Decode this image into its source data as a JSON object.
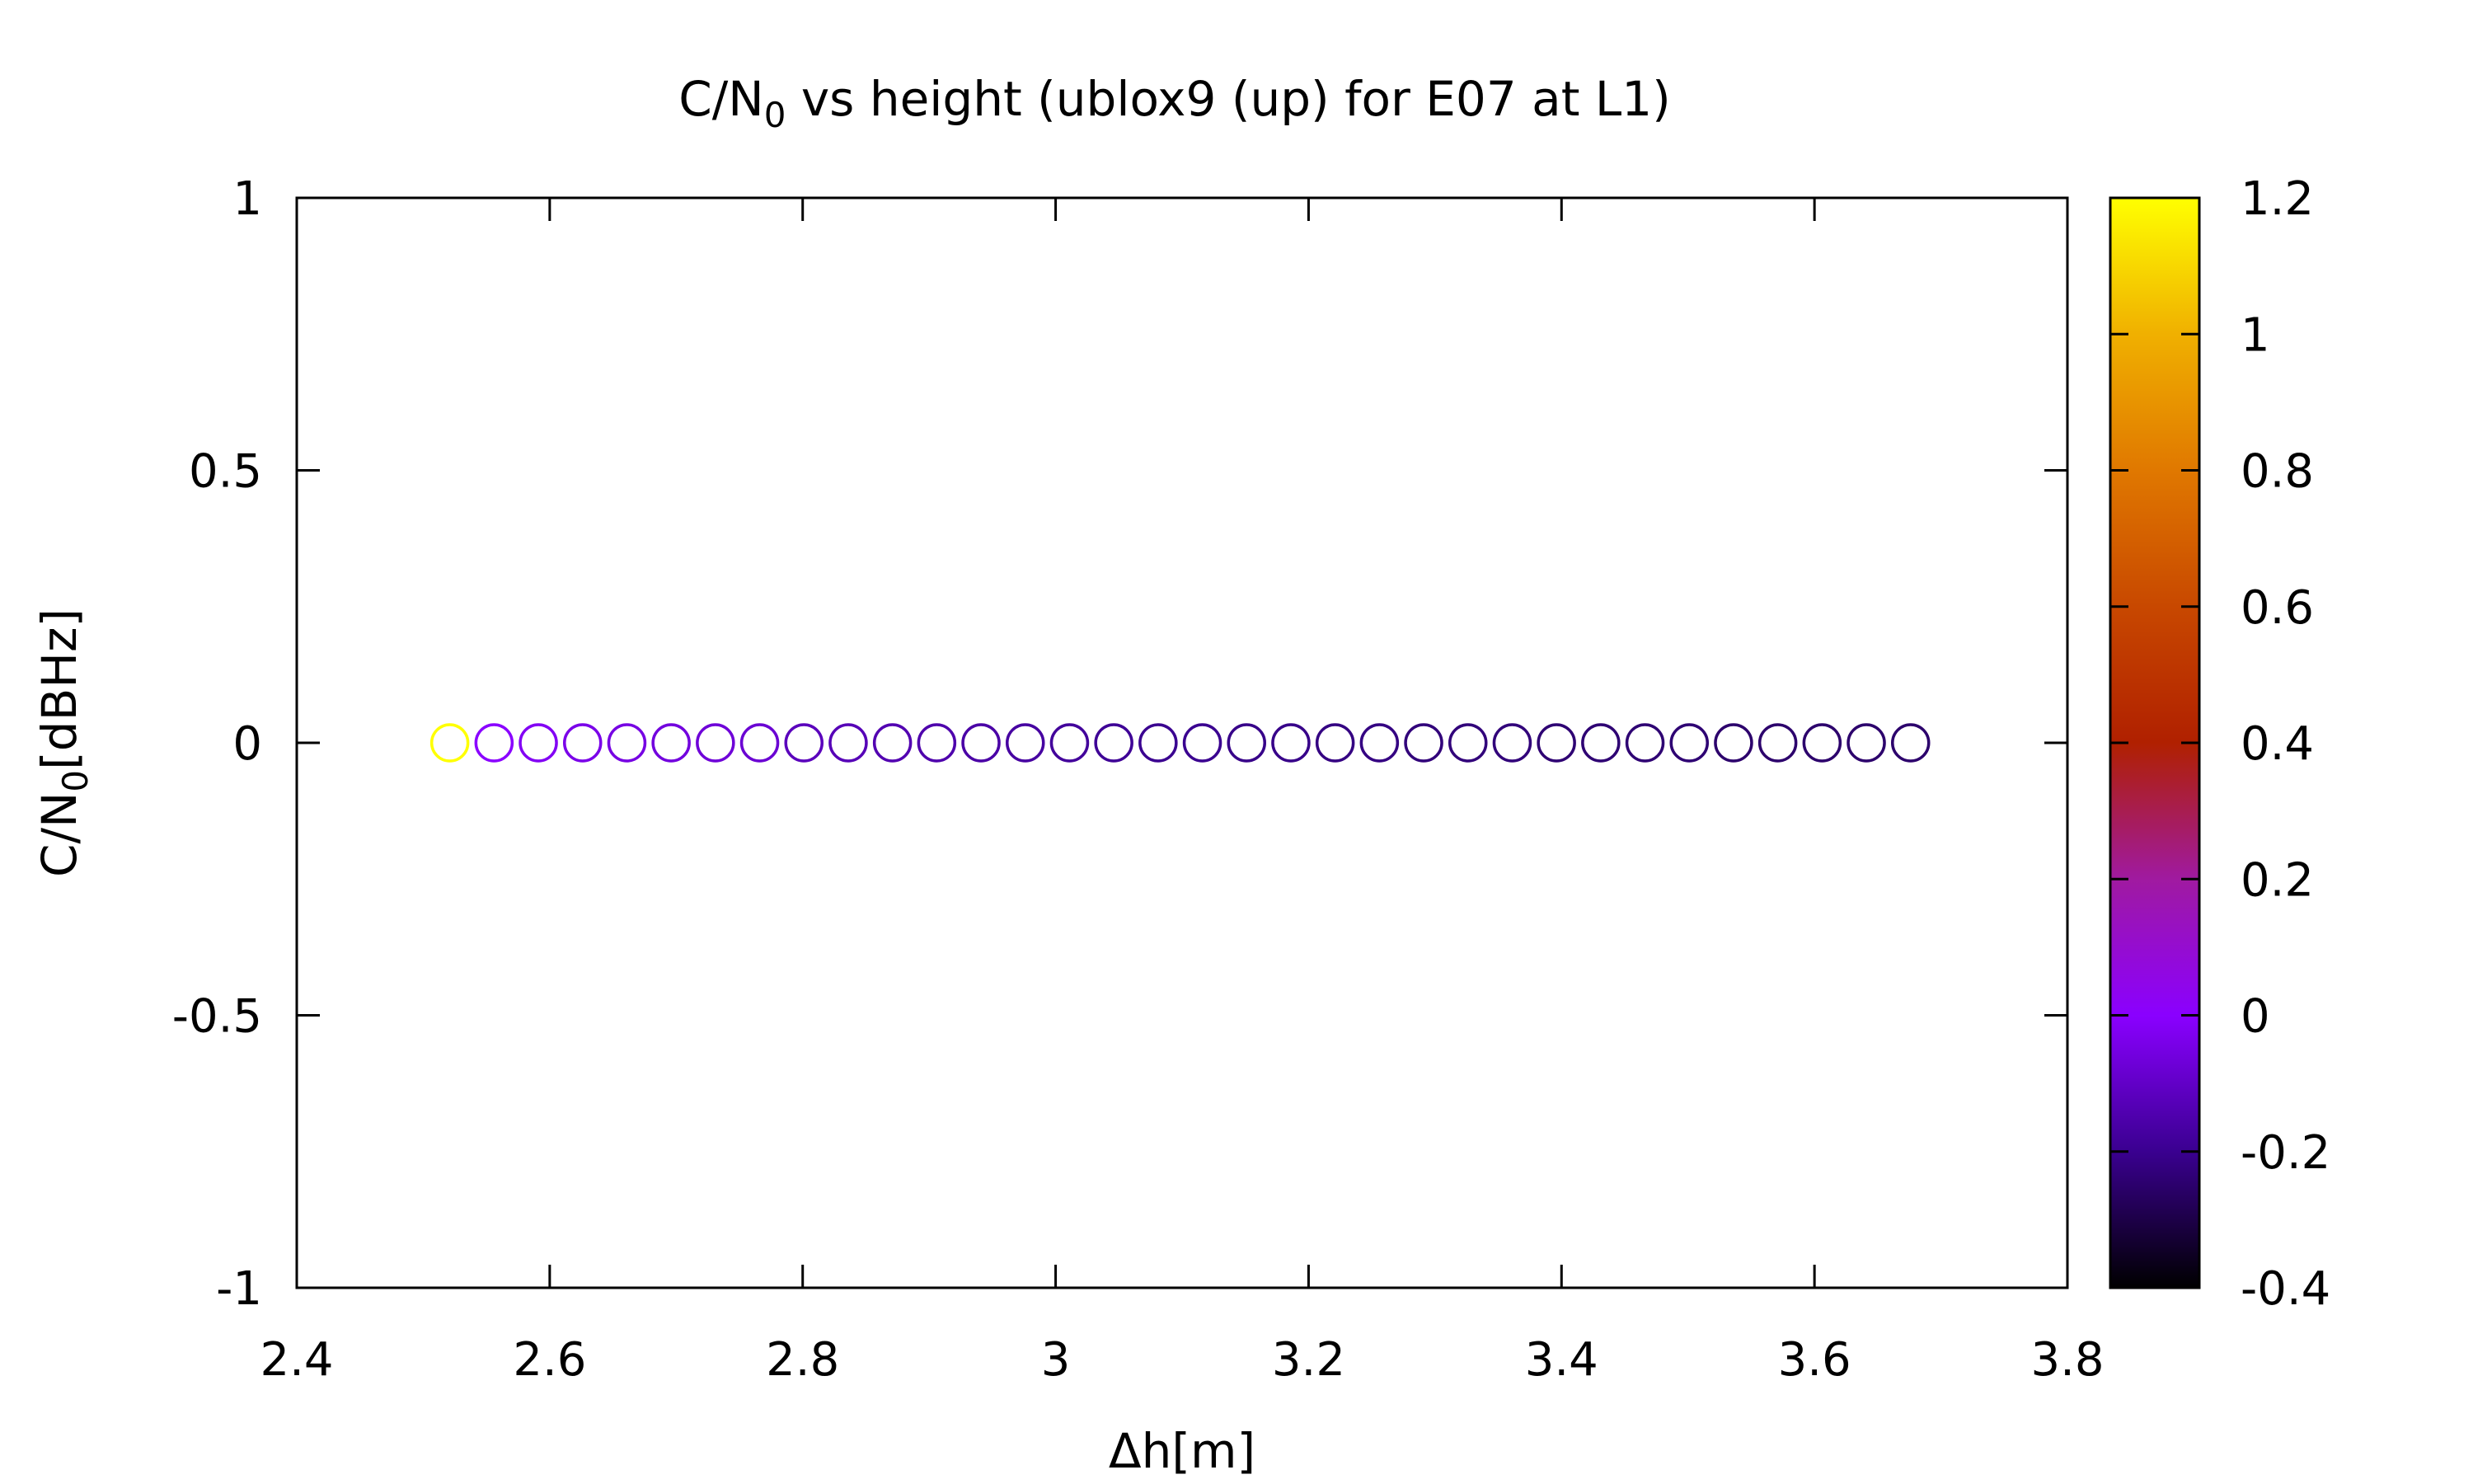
{
  "chart_data": {
    "type": "scatter",
    "title_main": "C/N",
    "title_sub": "0",
    "title_rest": " vs height (ublox9 (up) for E07 at L1)",
    "xlabel": "Δh[m]",
    "ylabel_main": "C/N",
    "ylabel_sub": "0",
    "ylabel_rest": "[dBHz]",
    "xlim": [
      2.4,
      3.8
    ],
    "ylim": [
      -1,
      1
    ],
    "xticks": [
      "2.4",
      "2.6",
      "2.8",
      "3",
      "3.2",
      "3.4",
      "3.6",
      "3.8"
    ],
    "yticks": [
      "1",
      "0.5",
      "0",
      "-0.5",
      "-1"
    ],
    "colorbar": {
      "range": [
        -0.4,
        1.2
      ],
      "ticks": [
        "1.2",
        "1",
        "0.8",
        "0.6",
        "0.4",
        "0.2",
        "0",
        "-0.2",
        "-0.4"
      ],
      "palette": [
        "#000000",
        "#3a0090",
        "#8a00ff",
        "#a01aa0",
        "#b02000",
        "#c84800",
        "#e07800",
        "#f0b000",
        "#ffff00"
      ]
    },
    "series": [
      {
        "x": [
          2.521,
          2.556,
          2.591,
          2.626,
          2.661,
          2.696,
          2.731,
          2.766,
          2.801,
          2.836,
          2.871,
          2.906,
          2.941,
          2.976,
          3.011,
          3.046,
          3.081,
          3.116,
          3.151,
          3.186,
          3.221,
          3.256,
          3.291,
          3.326,
          3.361,
          3.396,
          3.431,
          3.466,
          3.501,
          3.536,
          3.571,
          3.606,
          3.641,
          3.676
        ],
        "y": [
          0,
          0,
          0,
          0,
          0,
          0,
          0,
          0,
          0,
          0,
          0,
          0,
          0,
          0,
          0,
          0,
          0,
          0,
          0,
          0,
          0,
          0,
          0,
          0,
          0,
          0,
          0,
          0,
          0,
          0,
          0,
          0,
          0,
          0
        ],
        "c": [
          1.2,
          0.0,
          -0.02,
          -0.04,
          -0.05,
          -0.06,
          -0.07,
          -0.08,
          -0.12,
          -0.13,
          -0.14,
          -0.15,
          -0.16,
          -0.17,
          -0.18,
          -0.19,
          -0.2,
          -0.2,
          -0.21,
          -0.21,
          -0.22,
          -0.22,
          -0.23,
          -0.23,
          -0.23,
          -0.24,
          -0.24,
          -0.24,
          -0.24,
          -0.25,
          -0.25,
          -0.25,
          -0.25,
          -0.25
        ]
      }
    ]
  }
}
